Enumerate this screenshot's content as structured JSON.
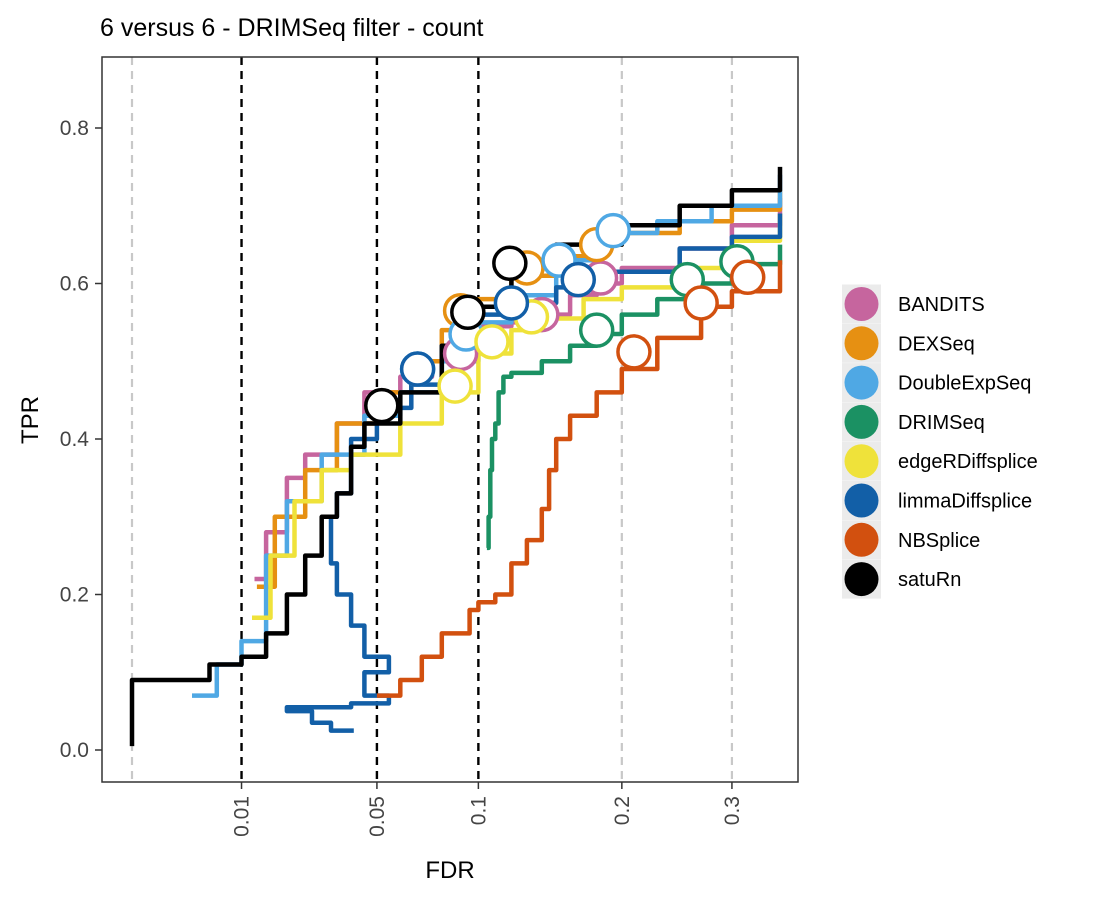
{
  "chart_data": {
    "type": "line",
    "title": "6 versus 6 - DRIMSeq filter - count",
    "xlabel": "FDR",
    "ylabel": "TPR",
    "x_scale": "sqrt",
    "xlim": [
      0.0,
      0.35
    ],
    "ylim": [
      -0.04,
      0.89
    ],
    "x_ticks": [
      {
        "value": 0.01,
        "label": "0.01"
      },
      {
        "value": 0.05,
        "label": "0.05"
      },
      {
        "value": 0.1,
        "label": "0.1"
      },
      {
        "value": 0.2,
        "label": "0.2"
      },
      {
        "value": 0.3,
        "label": "0.3"
      }
    ],
    "y_ticks": [
      {
        "value": 0.0,
        "label": "0.0"
      },
      {
        "value": 0.2,
        "label": "0.2"
      },
      {
        "value": 0.4,
        "label": "0.4"
      },
      {
        "value": 0.6,
        "label": "0.6"
      },
      {
        "value": 0.8,
        "label": "0.8"
      }
    ],
    "threshold_lines": [
      0.01,
      0.05,
      0.1
    ],
    "gridlines_x": [
      0.0,
      0.05,
      0.2,
      0.3
    ],
    "legend_position": "right",
    "series": [
      {
        "name": "BANDITS",
        "color": "#C6659E",
        "points": [
          [
            0.0125,
            0.22
          ],
          [
            0.015,
            0.28
          ],
          [
            0.02,
            0.35
          ],
          [
            0.025,
            0.38
          ],
          [
            0.035,
            0.42
          ],
          [
            0.045,
            0.46
          ],
          [
            0.06,
            0.48
          ],
          [
            0.075,
            0.5
          ],
          [
            0.09,
            0.52
          ],
          [
            0.1,
            0.545
          ],
          [
            0.12,
            0.55
          ],
          [
            0.14,
            0.56
          ],
          [
            0.16,
            0.585
          ],
          [
            0.18,
            0.6
          ],
          [
            0.2,
            0.62
          ],
          [
            0.25,
            0.645
          ],
          [
            0.3,
            0.675
          ],
          [
            0.35,
            0.71
          ]
        ],
        "markers": [
          [
            0.09,
            0.51
          ],
          [
            0.14,
            0.56
          ],
          [
            0.183,
            0.607
          ]
        ]
      },
      {
        "name": "DEXSeq",
        "color": "#E69012",
        "points": [
          [
            0.013,
            0.21
          ],
          [
            0.017,
            0.3
          ],
          [
            0.025,
            0.36
          ],
          [
            0.035,
            0.42
          ],
          [
            0.05,
            0.46
          ],
          [
            0.065,
            0.5
          ],
          [
            0.08,
            0.54
          ],
          [
            0.09,
            0.565
          ],
          [
            0.1,
            0.58
          ],
          [
            0.12,
            0.61
          ],
          [
            0.15,
            0.635
          ],
          [
            0.18,
            0.65
          ],
          [
            0.2,
            0.665
          ],
          [
            0.25,
            0.68
          ],
          [
            0.3,
            0.695
          ],
          [
            0.35,
            0.72
          ]
        ],
        "markers": [
          [
            0.09,
            0.565
          ],
          [
            0.13,
            0.62
          ],
          [
            0.18,
            0.65
          ]
        ]
      },
      {
        "name": "DoubleExpSeq",
        "color": "#4FA8E4",
        "points": [
          [
            0.003,
            0.07
          ],
          [
            0.006,
            0.11
          ],
          [
            0.01,
            0.14
          ],
          [
            0.015,
            0.25
          ],
          [
            0.02,
            0.32
          ],
          [
            0.03,
            0.38
          ],
          [
            0.045,
            0.43
          ],
          [
            0.06,
            0.46
          ],
          [
            0.08,
            0.5
          ],
          [
            0.1,
            0.55
          ],
          [
            0.12,
            0.585
          ],
          [
            0.15,
            0.63
          ],
          [
            0.18,
            0.65
          ],
          [
            0.195,
            0.665
          ],
          [
            0.23,
            0.68
          ],
          [
            0.28,
            0.7
          ],
          [
            0.35,
            0.74
          ]
        ],
        "markers": [
          [
            0.068,
            0.49
          ],
          [
            0.093,
            0.535
          ],
          [
            0.152,
            0.63
          ],
          [
            0.193,
            0.668
          ]
        ]
      },
      {
        "name": "DRIMSeq",
        "color": "#1B9163",
        "points": [
          [
            0.105,
            0.26
          ],
          [
            0.106,
            0.3
          ],
          [
            0.107,
            0.36
          ],
          [
            0.108,
            0.4
          ],
          [
            0.11,
            0.42
          ],
          [
            0.112,
            0.46
          ],
          [
            0.115,
            0.48
          ],
          [
            0.12,
            0.485
          ],
          [
            0.14,
            0.5
          ],
          [
            0.16,
            0.52
          ],
          [
            0.18,
            0.535
          ],
          [
            0.2,
            0.56
          ],
          [
            0.23,
            0.58
          ],
          [
            0.26,
            0.6
          ],
          [
            0.3,
            0.625
          ],
          [
            0.35,
            0.65
          ]
        ],
        "markers": [
          [
            0.18,
            0.54
          ],
          [
            0.257,
            0.605
          ],
          [
            0.305,
            0.628
          ]
        ]
      },
      {
        "name": "edgeRDiffsplice",
        "color": "#EFE23A",
        "points": [
          [
            0.012,
            0.17
          ],
          [
            0.016,
            0.25
          ],
          [
            0.022,
            0.32
          ],
          [
            0.03,
            0.36
          ],
          [
            0.04,
            0.38
          ],
          [
            0.06,
            0.42
          ],
          [
            0.08,
            0.46
          ],
          [
            0.1,
            0.51
          ],
          [
            0.12,
            0.54
          ],
          [
            0.14,
            0.555
          ],
          [
            0.17,
            0.58
          ],
          [
            0.2,
            0.595
          ],
          [
            0.25,
            0.62
          ],
          [
            0.3,
            0.655
          ],
          [
            0.35,
            0.69
          ]
        ],
        "markers": [
          [
            0.087,
            0.468
          ],
          [
            0.108,
            0.525
          ],
          [
            0.133,
            0.557
          ]
        ]
      },
      {
        "name": "limmaDiffsplice",
        "color": "#125FA7",
        "points": [
          [
            0.041,
            0.025
          ],
          [
            0.033,
            0.035
          ],
          [
            0.027,
            0.05
          ],
          [
            0.02,
            0.055
          ],
          [
            0.04,
            0.06
          ],
          [
            0.055,
            0.07
          ],
          [
            0.045,
            0.1
          ],
          [
            0.055,
            0.12
          ],
          [
            0.045,
            0.16
          ],
          [
            0.04,
            0.2
          ],
          [
            0.035,
            0.24
          ],
          [
            0.033,
            0.3
          ],
          [
            0.035,
            0.33
          ],
          [
            0.04,
            0.4
          ],
          [
            0.05,
            0.44
          ],
          [
            0.065,
            0.47
          ],
          [
            0.08,
            0.52
          ],
          [
            0.1,
            0.56
          ],
          [
            0.12,
            0.575
          ],
          [
            0.15,
            0.595
          ],
          [
            0.18,
            0.615
          ],
          [
            0.25,
            0.645
          ],
          [
            0.3,
            0.66
          ],
          [
            0.35,
            0.69
          ]
        ],
        "markers": [
          [
            0.068,
            0.49
          ],
          [
            0.12,
            0.575
          ],
          [
            0.166,
            0.605
          ]
        ]
      },
      {
        "name": "NBSplice",
        "color": "#D2500F",
        "points": [
          [
            0.05,
            0.07
          ],
          [
            0.06,
            0.09
          ],
          [
            0.07,
            0.12
          ],
          [
            0.08,
            0.15
          ],
          [
            0.095,
            0.18
          ],
          [
            0.1,
            0.19
          ],
          [
            0.11,
            0.2
          ],
          [
            0.12,
            0.24
          ],
          [
            0.13,
            0.27
          ],
          [
            0.14,
            0.31
          ],
          [
            0.145,
            0.36
          ],
          [
            0.15,
            0.4
          ],
          [
            0.16,
            0.43
          ],
          [
            0.18,
            0.46
          ],
          [
            0.2,
            0.49
          ],
          [
            0.23,
            0.53
          ],
          [
            0.27,
            0.57
          ],
          [
            0.3,
            0.59
          ],
          [
            0.35,
            0.63
          ]
        ],
        "markers": [
          [
            0.21,
            0.512
          ],
          [
            0.27,
            0.575
          ],
          [
            0.316,
            0.608
          ]
        ]
      },
      {
        "name": "satuRn",
        "color": "#000000",
        "points": [
          [
            0.0,
            0.005
          ],
          [
            0.0,
            0.09
          ],
          [
            0.005,
            0.11
          ],
          [
            0.01,
            0.12
          ],
          [
            0.015,
            0.15
          ],
          [
            0.02,
            0.2
          ],
          [
            0.025,
            0.25
          ],
          [
            0.03,
            0.3
          ],
          [
            0.035,
            0.33
          ],
          [
            0.04,
            0.39
          ],
          [
            0.045,
            0.42
          ],
          [
            0.06,
            0.46
          ],
          [
            0.08,
            0.52
          ],
          [
            0.1,
            0.57
          ],
          [
            0.12,
            0.62
          ],
          [
            0.15,
            0.65
          ],
          [
            0.2,
            0.675
          ],
          [
            0.25,
            0.7
          ],
          [
            0.3,
            0.72
          ],
          [
            0.35,
            0.75
          ]
        ],
        "markers": [
          [
            0.052,
            0.443
          ],
          [
            0.094,
            0.563
          ],
          [
            0.119,
            0.626
          ]
        ]
      }
    ]
  }
}
